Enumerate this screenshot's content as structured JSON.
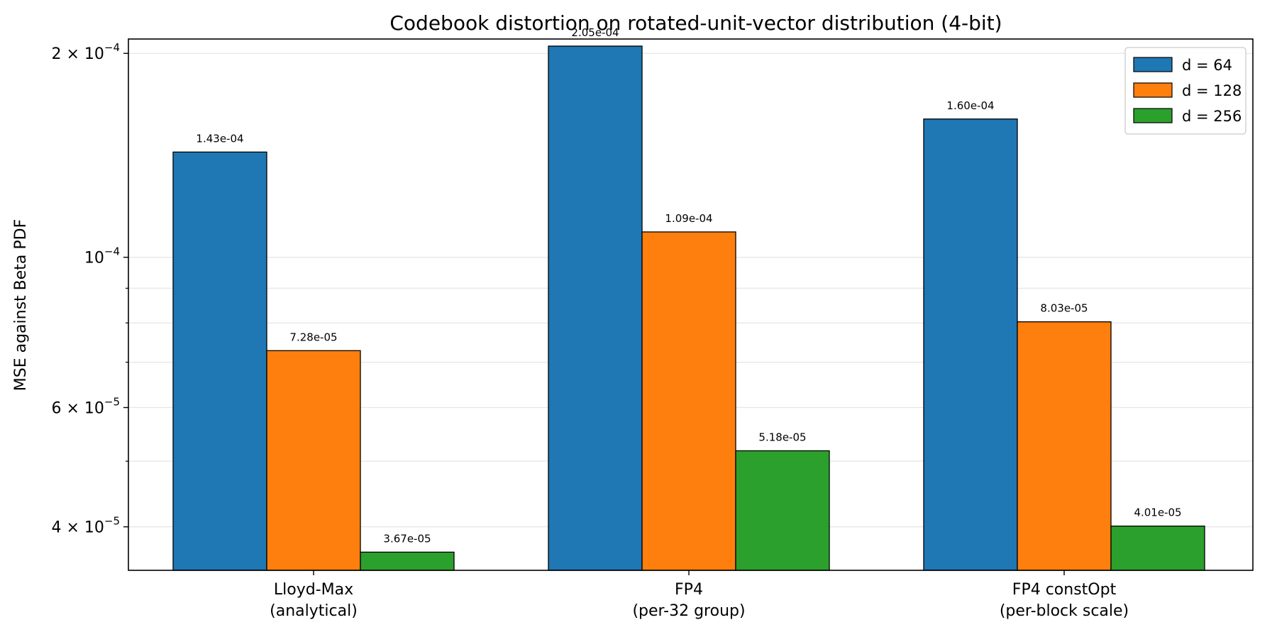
{
  "chart_data": {
    "type": "bar",
    "title": "Codebook distortion on rotated-unit-vector distribution (4-bit)",
    "xlabel": "",
    "ylabel": "MSE against Beta PDF",
    "yscale": "log",
    "ylim": [
      3.45e-05,
      0.00021
    ],
    "grid": "y",
    "legend_position": "top-right",
    "categories": [
      [
        "Lloyd-Max",
        "(analytical)"
      ],
      [
        "FP4",
        "(per-32 group)"
      ],
      [
        "FP4 constOpt",
        "(per-block scale)"
      ]
    ],
    "series": [
      {
        "name": "d = 64",
        "color": "#1f77b4",
        "values": [
          0.000143,
          0.000205,
          0.00016
        ],
        "labels": [
          "1.43e-04",
          "2.05e-04",
          "1.60e-04"
        ]
      },
      {
        "name": "d = 128",
        "color": "#ff7f0e",
        "values": [
          7.28e-05,
          0.000109,
          8.03e-05
        ],
        "labels": [
          "7.28e-05",
          "1.09e-04",
          "8.03e-05"
        ]
      },
      {
        "name": "d = 256",
        "color": "#2ca02c",
        "values": [
          3.67e-05,
          5.18e-05,
          4.01e-05
        ],
        "labels": [
          "3.67e-05",
          "5.18e-05",
          "4.01e-05"
        ]
      }
    ],
    "y_ticks": [
      {
        "value": 0.0002,
        "mantissa": "2",
        "exponent": "−4"
      },
      {
        "value": 0.0001,
        "mantissa": "",
        "exponent": "−4"
      },
      {
        "value": 6e-05,
        "mantissa": "6",
        "exponent": "−5"
      },
      {
        "value": 4e-05,
        "mantissa": "4",
        "exponent": "−5"
      }
    ],
    "y_minor_ticks": [
      5e-05,
      7e-05,
      8e-05,
      9e-05
    ]
  }
}
